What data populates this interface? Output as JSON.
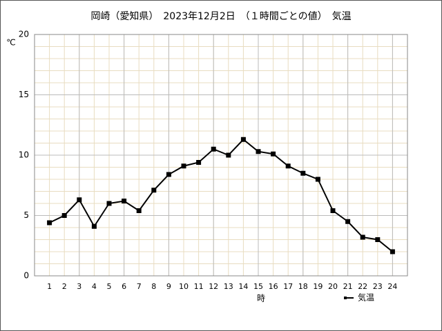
{
  "chart_data": {
    "type": "line",
    "title": "岡崎（愛知県）　2023年12月2日　（１時間ごとの値）　気温",
    "y_unit": "℃",
    "x_label": "時",
    "x": [
      1,
      2,
      3,
      4,
      5,
      6,
      7,
      8,
      9,
      10,
      11,
      12,
      13,
      14,
      15,
      16,
      17,
      18,
      19,
      20,
      21,
      22,
      23,
      24
    ],
    "xlim": [
      0,
      25
    ],
    "xticks": [
      1,
      2,
      3,
      4,
      5,
      6,
      7,
      8,
      9,
      10,
      11,
      12,
      13,
      14,
      15,
      16,
      17,
      18,
      19,
      20,
      21,
      22,
      23,
      24
    ],
    "x_major_grid": [
      3,
      6,
      9,
      12,
      15,
      18,
      21,
      24
    ],
    "ylim": [
      0,
      20
    ],
    "yticks": [
      0,
      5,
      10,
      15,
      20
    ],
    "y_minor_grid": [
      1,
      2,
      3,
      4,
      6,
      7,
      8,
      9,
      11,
      12,
      13,
      14,
      16,
      17,
      18,
      19
    ],
    "grid": true,
    "legend": "bottom-right",
    "series": [
      {
        "name": "気温",
        "color": "#000000",
        "values": [
          4.4,
          5.0,
          6.3,
          4.1,
          6.0,
          6.2,
          5.4,
          7.1,
          8.4,
          9.1,
          9.4,
          10.5,
          10.0,
          11.3,
          10.3,
          10.1,
          9.1,
          8.5,
          8.0,
          5.4,
          4.5,
          3.2,
          3.0,
          2.0
        ]
      }
    ]
  }
}
